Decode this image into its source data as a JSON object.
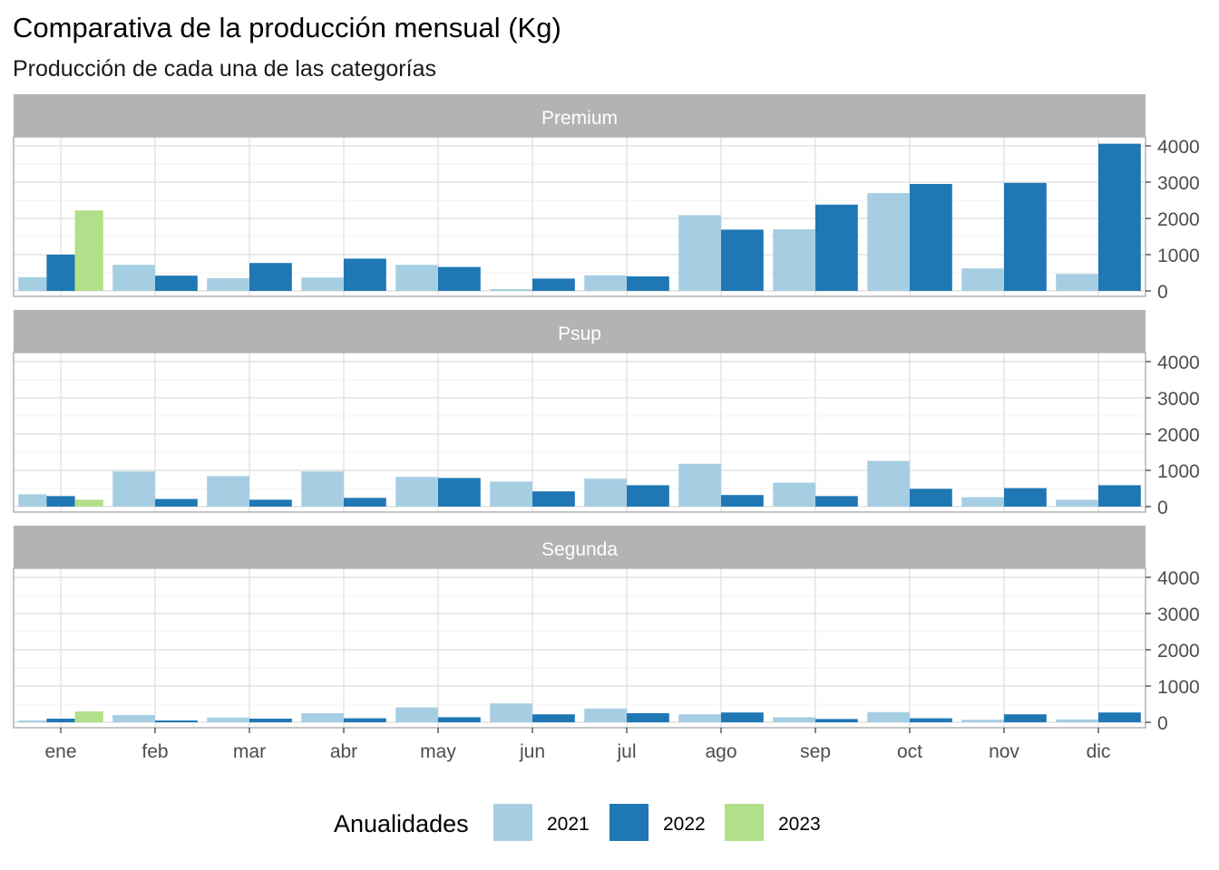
{
  "title": "Comparativa de la producción mensual (Kg)",
  "subtitle": "Producción de cada una de las categorías",
  "chart_data": {
    "type": "bar",
    "title": "Comparativa de la producción mensual (Kg)",
    "subtitle": "Producción de cada una de las categorías",
    "categories": [
      "ene",
      "feb",
      "mar",
      "abr",
      "may",
      "jun",
      "jul",
      "ago",
      "sep",
      "oct",
      "nov",
      "dic"
    ],
    "ylim": [
      0,
      4200
    ],
    "y_ticks": [
      0,
      1000,
      2000,
      3000,
      4000
    ],
    "y_tick_labels": [
      "0",
      "1000",
      "2000",
      "3000",
      "4000"
    ],
    "xlabel": "",
    "ylabel": "",
    "grid": true,
    "legend": {
      "title": "Anualidades",
      "position": "bottom",
      "items": [
        {
          "label": "2021",
          "color": "#a6cee3"
        },
        {
          "label": "2022",
          "color": "#1f78b4"
        },
        {
          "label": "2023",
          "color": "#b2df8a"
        }
      ]
    },
    "facets": [
      {
        "label": "Premium",
        "series": [
          {
            "name": "2021",
            "color": "#a6cee3",
            "values": [
              380,
              720,
              350,
              370,
              720,
              50,
              430,
              2090,
              1700,
              2700,
              620,
              470
            ]
          },
          {
            "name": "2022",
            "color": "#1f78b4",
            "values": [
              1000,
              420,
              770,
              890,
              660,
              340,
              400,
              1690,
              2380,
              2950,
              2980,
              4060
            ]
          },
          {
            "name": "2023",
            "color": "#b2df8a",
            "values": [
              2220,
              null,
              null,
              null,
              null,
              null,
              null,
              null,
              null,
              null,
              null,
              null
            ]
          }
        ]
      },
      {
        "label": "Psup",
        "series": [
          {
            "name": "2021",
            "color": "#a6cee3",
            "values": [
              340,
              970,
              840,
              970,
              820,
              690,
              770,
              1180,
              660,
              1260,
              260,
              190
            ]
          },
          {
            "name": "2022",
            "color": "#1f78b4",
            "values": [
              290,
              210,
              190,
              240,
              790,
              420,
              590,
              320,
              290,
              490,
              510,
              590
            ]
          },
          {
            "name": "2023",
            "color": "#b2df8a",
            "values": [
              190,
              null,
              null,
              null,
              null,
              null,
              null,
              null,
              null,
              null,
              null,
              null
            ]
          }
        ]
      },
      {
        "label": "Segunda",
        "series": [
          {
            "name": "2021",
            "color": "#a6cee3",
            "values": [
              50,
              200,
              130,
              250,
              410,
              520,
              380,
              220,
              140,
              280,
              70,
              80
            ]
          },
          {
            "name": "2022",
            "color": "#1f78b4",
            "values": [
              100,
              50,
              100,
              110,
              140,
              220,
              250,
              270,
              90,
              110,
              220,
              270
            ]
          },
          {
            "name": "2023",
            "color": "#b2df8a",
            "values": [
              300,
              null,
              null,
              null,
              null,
              null,
              null,
              null,
              null,
              null,
              null,
              null
            ]
          }
        ]
      }
    ]
  }
}
